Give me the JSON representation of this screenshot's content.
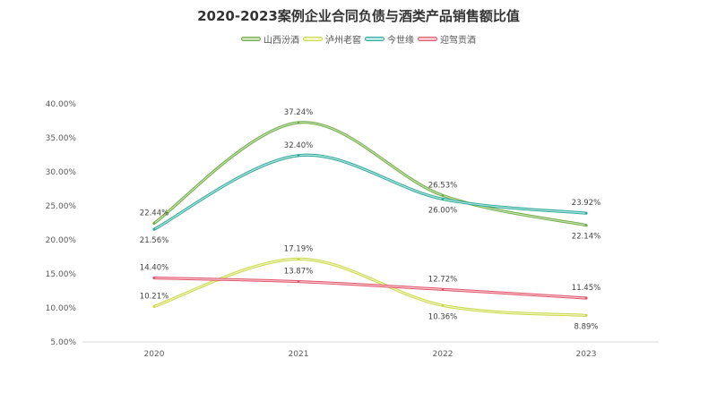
{
  "chart_data": {
    "type": "line",
    "title": "2020-2023案例企业合同负债与酒类产品销售额比值",
    "xlabel": "",
    "ylabel": "",
    "categories": [
      "2020",
      "2021",
      "2022",
      "2023"
    ],
    "ylim": [
      5,
      40
    ],
    "yticks": [
      "5.00%",
      "10.00%",
      "15.00%",
      "20.00%",
      "25.00%",
      "30.00%",
      "35.00%",
      "40.00%"
    ],
    "ytick_values": [
      5,
      10,
      15,
      20,
      25,
      30,
      35,
      40
    ],
    "grid": false,
    "smooth": true,
    "legend_position": "top",
    "series": [
      {
        "name": "山西汾酒",
        "values": [
          22.44,
          37.24,
          26.53,
          22.14
        ],
        "labels": [
          "22.44%",
          "37.24%",
          "26.53%",
          "22.14%"
        ],
        "label_pos": [
          "above",
          "above",
          "above",
          "below"
        ],
        "color": "#70ad47",
        "inner": "#c6e0b4"
      },
      {
        "name": "泸州老窖",
        "values": [
          10.21,
          17.19,
          10.36,
          8.89
        ],
        "labels": [
          "10.21%",
          "17.19%",
          "10.36%",
          "8.89%"
        ],
        "label_pos": [
          "above",
          "above",
          "below",
          "below"
        ],
        "color": "#c9d94a",
        "inner": "#f0f5c2"
      },
      {
        "name": "今世缘",
        "values": [
          21.56,
          32.4,
          26.0,
          23.92
        ],
        "labels": [
          "21.56%",
          "32.40%",
          "26.00%",
          "23.92%"
        ],
        "label_pos": [
          "below",
          "above",
          "below",
          "above"
        ],
        "color": "#2fa89a",
        "inner": "#b4e6df"
      },
      {
        "name": "迎驾贡酒",
        "values": [
          14.4,
          13.87,
          12.72,
          11.45
        ],
        "labels": [
          "14.40%",
          "13.87%",
          "12.72%",
          "11.45%"
        ],
        "label_pos": [
          "above",
          "above",
          "above",
          "above"
        ],
        "color": "#e0566b",
        "inner": "#f7c4cc"
      }
    ]
  }
}
